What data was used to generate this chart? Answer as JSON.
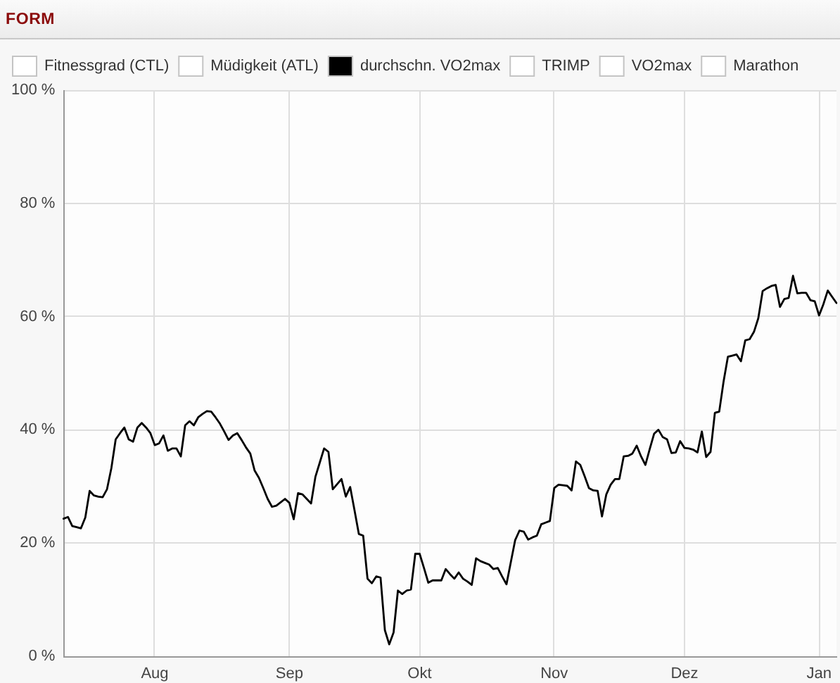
{
  "chart_data": {
    "type": "line",
    "title": "FORM",
    "categories": [
      null,
      null,
      null,
      null,
      null,
      null,
      null,
      null,
      null,
      null,
      null,
      null,
      null,
      null,
      null,
      null,
      null,
      null,
      null,
      null,
      null,
      "Aug",
      null,
      null,
      null,
      null,
      null,
      null,
      null,
      null,
      null,
      null,
      null,
      null,
      null,
      null,
      null,
      null,
      null,
      null,
      null,
      null,
      null,
      null,
      null,
      null,
      null,
      null,
      null,
      null,
      null,
      null,
      "Sep",
      null,
      null,
      null,
      null,
      null,
      null,
      null,
      null,
      null,
      null,
      null,
      null,
      null,
      null,
      null,
      null,
      null,
      null,
      null,
      null,
      null,
      null,
      null,
      null,
      null,
      null,
      null,
      null,
      null,
      "Okt",
      null,
      null,
      null,
      null,
      null,
      null,
      null,
      null,
      null,
      null,
      null,
      null,
      null,
      null,
      null,
      null,
      null,
      null,
      null,
      null,
      null,
      null,
      null,
      null,
      null,
      null,
      null,
      null,
      null,
      null,
      "Nov",
      null,
      null,
      null,
      null,
      null,
      null,
      null,
      null,
      null,
      null,
      null,
      null,
      null,
      null,
      null,
      null,
      null,
      null,
      null,
      null,
      null,
      null,
      null,
      null,
      null,
      null,
      null,
      null,
      null,
      "Dez",
      null,
      null,
      null,
      null,
      null,
      null,
      null,
      null,
      null,
      null,
      null,
      null,
      null,
      null,
      null,
      null,
      null,
      null,
      null,
      null,
      null,
      null,
      null,
      null,
      null,
      null,
      null,
      null,
      null,
      null,
      "Jan",
      null,
      null,
      null,
      null
    ],
    "series": [
      {
        "name": "Fitnessgrad (CTL)",
        "color": "#ffffff",
        "values": [
          null,
          null,
          null,
          null,
          null,
          null,
          null,
          null,
          null,
          null,
          null,
          null,
          null,
          null,
          null,
          null,
          null,
          null,
          null,
          null,
          null,
          null,
          null,
          null,
          null,
          null,
          null,
          null,
          null,
          null,
          null,
          null,
          null,
          null,
          null,
          null,
          null,
          null,
          null,
          null,
          null,
          null,
          null,
          null,
          null,
          null,
          null,
          null,
          null,
          null,
          null,
          null,
          null,
          null,
          null,
          null,
          null,
          null,
          null,
          null,
          null,
          null,
          null,
          null,
          null,
          null,
          null,
          null,
          null,
          null,
          null,
          null,
          null,
          null,
          null,
          null,
          null,
          null,
          null,
          null,
          null,
          null,
          null,
          null,
          null,
          null,
          null,
          null,
          null,
          null,
          null,
          null,
          null,
          null,
          null,
          null,
          null,
          null,
          null,
          null,
          null,
          null,
          null,
          null,
          null,
          null,
          null,
          null,
          null,
          null,
          null,
          null,
          null,
          null,
          null,
          null,
          null,
          null,
          null,
          null,
          null,
          null,
          null,
          null,
          null,
          null,
          null,
          null,
          null,
          null,
          null,
          null,
          null,
          null,
          null,
          null,
          null,
          null,
          null,
          null,
          null,
          null,
          null,
          null,
          null,
          null,
          null,
          null,
          null,
          null,
          null,
          null,
          null,
          null,
          null,
          null,
          null,
          null,
          null,
          null,
          null,
          null,
          null,
          null,
          null,
          null,
          null,
          null,
          null,
          null,
          null,
          null,
          null,
          null,
          null,
          null,
          null,
          null,
          null
        ]
      },
      {
        "name": "Müdigkeit (ATL)",
        "color": "#ffffff",
        "values": [
          null,
          null,
          null,
          null,
          null,
          null,
          null,
          null,
          null,
          null,
          null,
          null,
          null,
          null,
          null,
          null,
          null,
          null,
          null,
          null,
          null,
          null,
          null,
          null,
          null,
          null,
          null,
          null,
          null,
          null,
          null,
          null,
          null,
          null,
          null,
          null,
          null,
          null,
          null,
          null,
          null,
          null,
          null,
          null,
          null,
          null,
          null,
          null,
          null,
          null,
          null,
          null,
          null,
          null,
          null,
          null,
          null,
          null,
          null,
          null,
          null,
          null,
          null,
          null,
          null,
          null,
          null,
          null,
          null,
          null,
          null,
          null,
          null,
          null,
          null,
          null,
          null,
          null,
          null,
          null,
          null,
          null,
          null,
          null,
          null,
          null,
          null,
          null,
          null,
          null,
          null,
          null,
          null,
          null,
          null,
          null,
          null,
          null,
          null,
          null,
          null,
          null,
          null,
          null,
          null,
          null,
          null,
          null,
          null,
          null,
          null,
          null,
          null,
          null,
          null,
          null,
          null,
          null,
          null,
          null,
          null,
          null,
          null,
          null,
          null,
          null,
          null,
          null,
          null,
          null,
          null,
          null,
          null,
          null,
          null,
          null,
          null,
          null,
          null,
          null,
          null,
          null,
          null,
          null,
          null,
          null,
          null,
          null,
          null,
          null,
          null,
          null,
          null,
          null,
          null,
          null,
          null,
          null,
          null,
          null,
          null,
          null,
          null,
          null,
          null,
          null,
          null,
          null,
          null,
          null,
          null,
          null,
          null,
          null,
          null,
          null,
          null,
          null,
          null
        ]
      },
      {
        "name": "durchschn. VO2max",
        "color": "#000000",
        "values": [
          24.3,
          24.6,
          23.0,
          22.8,
          22.6,
          24.5,
          29.2,
          28.4,
          28.2,
          28.1,
          29.5,
          33.2,
          38.3,
          39.4,
          40.4,
          38.3,
          37.9,
          40.4,
          41.2,
          40.4,
          39.4,
          37.3,
          37.6,
          39.0,
          36.3,
          36.7,
          36.7,
          35.3,
          40.8,
          41.5,
          40.8,
          42.2,
          42.8,
          43.3,
          43.2,
          42.2,
          41.1,
          39.7,
          38.2,
          39.0,
          39.4,
          38.2,
          36.9,
          35.8,
          32.8,
          31.5,
          29.7,
          27.8,
          26.4,
          26.6,
          27.2,
          27.8,
          27.1,
          24.2,
          28.8,
          28.6,
          27.8,
          27.0,
          31.7,
          34.2,
          36.7,
          36.1,
          29.5,
          30.4,
          31.3,
          28.2,
          29.9,
          25.8,
          21.6,
          21.3,
          13.7,
          12.9,
          14.1,
          13.9,
          4.6,
          2.1,
          4.2,
          11.6,
          11.0,
          11.6,
          11.8,
          18.1,
          18.1,
          15.6,
          13.0,
          13.4,
          13.4,
          13.4,
          15.4,
          14.5,
          13.7,
          14.8,
          13.7,
          13.2,
          12.6,
          17.3,
          16.8,
          16.5,
          16.2,
          15.4,
          15.6,
          14.1,
          12.7,
          16.6,
          20.5,
          22.2,
          22.0,
          20.6,
          21.0,
          21.3,
          23.3,
          23.6,
          23.9,
          29.7,
          30.3,
          30.2,
          30.1,
          29.3,
          34.4,
          33.8,
          31.8,
          29.7,
          29.3,
          29.2,
          24.7,
          28.6,
          30.3,
          31.3,
          31.3,
          35.3,
          35.4,
          35.8,
          37.2,
          35.3,
          33.8,
          36.6,
          39.3,
          40.0,
          38.7,
          38.3,
          35.9,
          36.0,
          38.0,
          36.8,
          36.7,
          36.5,
          36.0,
          39.7,
          35.2,
          36.1,
          43.0,
          43.2,
          48.5,
          52.9,
          53.1,
          53.3,
          52.1,
          55.8,
          56.0,
          57.3,
          59.7,
          64.5,
          65.0,
          65.4,
          65.6,
          61.7,
          63.1,
          63.3,
          67.2,
          64.1,
          64.2,
          64.2,
          62.9,
          62.7,
          60.2,
          62.2,
          64.6,
          63.5,
          62.4
        ]
      },
      {
        "name": "TRIMP",
        "color": "#ffffff",
        "values": [
          null,
          null,
          null,
          null,
          null,
          null,
          null,
          null,
          null,
          null,
          null,
          null,
          null,
          null,
          null,
          null,
          null,
          null,
          null,
          null,
          null,
          null,
          null,
          null,
          null,
          null,
          null,
          null,
          null,
          null,
          null,
          null,
          null,
          null,
          null,
          null,
          null,
          null,
          null,
          null,
          null,
          null,
          null,
          null,
          null,
          null,
          null,
          null,
          null,
          null,
          null,
          null,
          null,
          null,
          null,
          null,
          null,
          null,
          null,
          null,
          null,
          null,
          null,
          null,
          null,
          null,
          null,
          null,
          null,
          null,
          null,
          null,
          null,
          null,
          null,
          null,
          null,
          null,
          null,
          null,
          null,
          null,
          null,
          null,
          null,
          null,
          null,
          null,
          null,
          null,
          null,
          null,
          null,
          null,
          null,
          null,
          null,
          null,
          null,
          null,
          null,
          null,
          null,
          null,
          null,
          null,
          null,
          null,
          null,
          null,
          null,
          null,
          null,
          null,
          null,
          null,
          null,
          null,
          null,
          null,
          null,
          null,
          null,
          null,
          null,
          null,
          null,
          null,
          null,
          null,
          null,
          null,
          null,
          null,
          null,
          null,
          null,
          null,
          null,
          null,
          null,
          null,
          null,
          null,
          null,
          null,
          null,
          null,
          null,
          null,
          null,
          null,
          null,
          null,
          null,
          null,
          null,
          null,
          null,
          null,
          null,
          null,
          null,
          null,
          null,
          null,
          null,
          null,
          null,
          null,
          null,
          null,
          null,
          null,
          null,
          null,
          null,
          null,
          null
        ]
      },
      {
        "name": "VO2max",
        "color": "#ffffff",
        "values": [
          null,
          null,
          null,
          null,
          null,
          null,
          null,
          null,
          null,
          null,
          null,
          null,
          null,
          null,
          null,
          null,
          null,
          null,
          null,
          null,
          null,
          null,
          null,
          null,
          null,
          null,
          null,
          null,
          null,
          null,
          null,
          null,
          null,
          null,
          null,
          null,
          null,
          null,
          null,
          null,
          null,
          null,
          null,
          null,
          null,
          null,
          null,
          null,
          null,
          null,
          null,
          null,
          null,
          null,
          null,
          null,
          null,
          null,
          null,
          null,
          null,
          null,
          null,
          null,
          null,
          null,
          null,
          null,
          null,
          null,
          null,
          null,
          null,
          null,
          null,
          null,
          null,
          null,
          null,
          null,
          null,
          null,
          null,
          null,
          null,
          null,
          null,
          null,
          null,
          null,
          null,
          null,
          null,
          null,
          null,
          null,
          null,
          null,
          null,
          null,
          null,
          null,
          null,
          null,
          null,
          null,
          null,
          null,
          null,
          null,
          null,
          null,
          null,
          null,
          null,
          null,
          null,
          null,
          null,
          null,
          null,
          null,
          null,
          null,
          null,
          null,
          null,
          null,
          null,
          null,
          null,
          null,
          null,
          null,
          null,
          null,
          null,
          null,
          null,
          null,
          null,
          null,
          null,
          null,
          null,
          null,
          null,
          null,
          null,
          null,
          null,
          null,
          null,
          null,
          null,
          null,
          null,
          null,
          null,
          null,
          null,
          null,
          null,
          null,
          null,
          null,
          null,
          null,
          null,
          null,
          null,
          null,
          null,
          null,
          null,
          null,
          null,
          null,
          null
        ]
      },
      {
        "name": "Marathon",
        "color": "#ffffff",
        "values": [
          null,
          null,
          null,
          null,
          null,
          null,
          null,
          null,
          null,
          null,
          null,
          null,
          null,
          null,
          null,
          null,
          null,
          null,
          null,
          null,
          null,
          null,
          null,
          null,
          null,
          null,
          null,
          null,
          null,
          null,
          null,
          null,
          null,
          null,
          null,
          null,
          null,
          null,
          null,
          null,
          null,
          null,
          null,
          null,
          null,
          null,
          null,
          null,
          null,
          null,
          null,
          null,
          null,
          null,
          null,
          null,
          null,
          null,
          null,
          null,
          null,
          null,
          null,
          null,
          null,
          null,
          null,
          null,
          null,
          null,
          null,
          null,
          null,
          null,
          null,
          null,
          null,
          null,
          null,
          null,
          null,
          null,
          null,
          null,
          null,
          null,
          null,
          null,
          null,
          null,
          null,
          null,
          null,
          null,
          null,
          null,
          null,
          null,
          null,
          null,
          null,
          null,
          null,
          null,
          null,
          null,
          null,
          null,
          null,
          null,
          null,
          null,
          null,
          null,
          null,
          null,
          null,
          null,
          null,
          null,
          null,
          null,
          null,
          null,
          null,
          null,
          null,
          null,
          null,
          null,
          null,
          null,
          null,
          null,
          null,
          null,
          null,
          null,
          null,
          null,
          null,
          null,
          null,
          null,
          null,
          null,
          null,
          null,
          null,
          null,
          null,
          null,
          null,
          null,
          null,
          null,
          null,
          null,
          null,
          null,
          null,
          null,
          null,
          null,
          null,
          null,
          null,
          null,
          null,
          null,
          null,
          null,
          null,
          null,
          null,
          null,
          null,
          null,
          null
        ]
      }
    ],
    "ylim": [
      0,
      100
    ],
    "yticks": [
      {
        "value": 0,
        "label": "0 %"
      },
      {
        "value": 20,
        "label": "20 %"
      },
      {
        "value": 40,
        "label": "40 %"
      },
      {
        "value": 60,
        "label": "60 %"
      },
      {
        "value": 80,
        "label": "80 %"
      },
      {
        "value": 100,
        "label": "100 %"
      }
    ],
    "grid": true,
    "legend": "top left",
    "marker": "none",
    "line_style": "solid"
  }
}
